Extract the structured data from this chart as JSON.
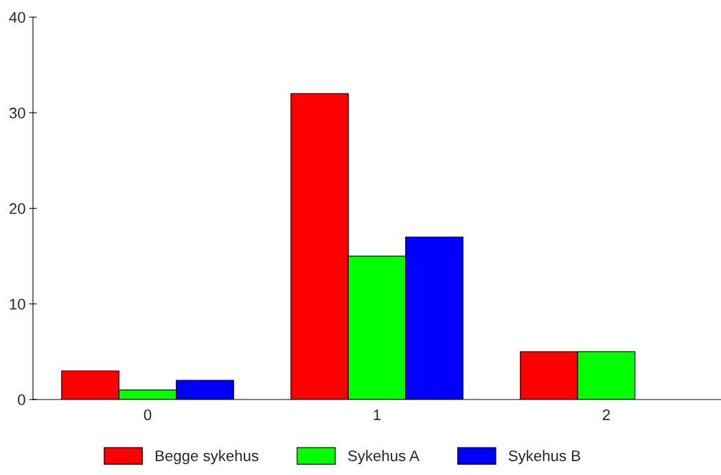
{
  "chart_data": {
    "type": "bar",
    "categories": [
      "0",
      "1",
      "2"
    ],
    "series": [
      {
        "name": "Begge sykehus",
        "color": "#ff0000",
        "values": [
          3,
          32,
          5
        ]
      },
      {
        "name": "Sykehus A",
        "color": "#00ff00",
        "values": [
          1,
          15,
          5
        ]
      },
      {
        "name": "Sykehus B",
        "color": "#0000ff",
        "values": [
          2,
          17,
          null
        ]
      }
    ],
    "ylim": [
      0,
      40
    ],
    "yticks": [
      0,
      10,
      20,
      30,
      40
    ],
    "grid": false,
    "legend": "bottom"
  }
}
